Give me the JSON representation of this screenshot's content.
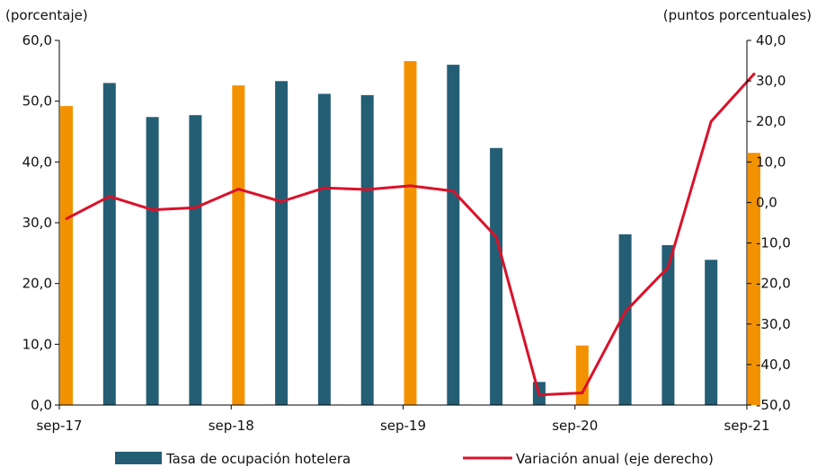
{
  "chart_data": {
    "type": "bar+line",
    "left_unit_label": "(porcentaje)",
    "right_unit_label": "(puntos porcentuales)",
    "x_tick_labels": [
      "sep-17",
      "sep-18",
      "sep-19",
      "sep-20",
      "sep-21"
    ],
    "x_tick_positions": [
      0,
      4,
      8,
      12,
      16
    ],
    "left_axis": {
      "min": 0,
      "max": 60,
      "step": 10,
      "tick_labels": [
        "0,0",
        "10,0",
        "20,0",
        "30,0",
        "40,0",
        "50,0",
        "60,0"
      ]
    },
    "right_axis": {
      "min": -50,
      "max": 40,
      "step": 10,
      "tick_labels": [
        "-50,0",
        "-40,0",
        "-30,0",
        "-20,0",
        "-10,0",
        "0,0",
        "10,0",
        "20,0",
        "30,0",
        "40,0"
      ]
    },
    "series": [
      {
        "name": "Tasa de ocupación hotelera",
        "type": "bar",
        "axis": "left",
        "color": "#245e74",
        "highlight_color": "#f39200",
        "highlight_indices": [
          0,
          4,
          8,
          12,
          16
        ],
        "values": [
          49.2,
          53.0,
          47.4,
          47.7,
          52.6,
          53.3,
          51.2,
          51.0,
          56.6,
          56.0,
          42.3,
          3.8,
          9.8,
          28.1,
          26.3,
          23.9,
          41.5
        ]
      },
      {
        "name": "Variación anual (eje derecho)",
        "type": "line",
        "axis": "right",
        "color": "#d9122a",
        "values": [
          -4.0,
          1.5,
          -1.8,
          -1.3,
          3.3,
          0.2,
          3.6,
          3.2,
          4.1,
          2.8,
          -8.5,
          -47.5,
          -47.0,
          -27.0,
          -16.0,
          20.0,
          31.7
        ]
      }
    ],
    "grid": false,
    "legend_position": "bottom"
  }
}
